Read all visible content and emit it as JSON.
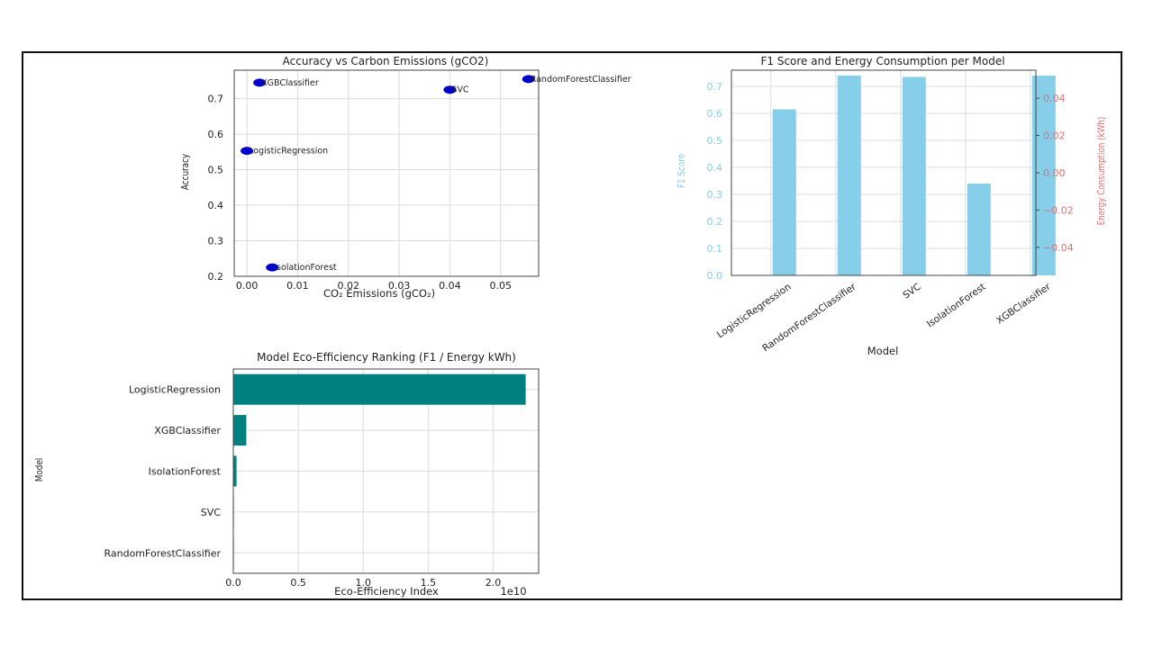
{
  "chart_data": [
    {
      "type": "scatter",
      "title": "Accuracy vs Carbon Emissions (gCO2)",
      "xlabel": "CO₂ Emissions (gCO₂)",
      "ylabel": "Accuracy",
      "xlim": [
        -0.0025,
        0.0575
      ],
      "ylim": [
        0.2,
        0.78
      ],
      "xticks": [
        "0.00",
        "0.01",
        "0.02",
        "0.03",
        "0.04",
        "0.05"
      ],
      "yticks": [
        "0.2",
        "0.3",
        "0.4",
        "0.5",
        "0.6",
        "0.7"
      ],
      "grid": true,
      "point_color": "#0000cc",
      "points": [
        {
          "label": "XGBClassifier",
          "x": 0.0025,
          "y": 0.745
        },
        {
          "label": "SVC",
          "x": 0.04,
          "y": 0.725
        },
        {
          "label": "RandomForestClassifier",
          "x": 0.0555,
          "y": 0.755
        },
        {
          "label": "LogisticRegression",
          "x": 0.0,
          "y": 0.553
        },
        {
          "label": "IsolationForest",
          "x": 0.005,
          "y": 0.225
        }
      ]
    },
    {
      "type": "bar",
      "title": "F1 Score and Energy Consumption per Model",
      "xlabel": "Model",
      "ylabel": "F1 Score",
      "y2label": "Energy Consumption (kWh)",
      "ylim": [
        0.0,
        0.76
      ],
      "y2lim": [
        -0.055,
        0.055
      ],
      "yticks": [
        "0.0",
        "0.1",
        "0.2",
        "0.3",
        "0.4",
        "0.5",
        "0.6",
        "0.7"
      ],
      "y2ticks": [
        "−0.04",
        "−0.02",
        "0.00",
        "0.02",
        "0.04"
      ],
      "grid": true,
      "bar_color": "#87ceeb",
      "left_axis_color": "#87ceeb",
      "right_axis_color": "#e07070",
      "categories": [
        "LogisticRegression",
        "RandomForestClassifier",
        "SVC",
        "IsolationForest",
        "XGBClassifier"
      ],
      "series": [
        {
          "values": [
            0.615,
            0.74,
            0.735,
            0.34,
            0.74
          ]
        }
      ]
    },
    {
      "type": "bar",
      "orientation": "horizontal",
      "title": "Model Eco-Efficiency Ranking (F1 / Energy kWh)",
      "xlabel": "Eco-Efficiency Index",
      "ylabel": "Model",
      "x_scale_label": "1e10",
      "xlim": [
        0,
        2.35
      ],
      "xticks": [
        "0.0",
        "0.5",
        "1.0",
        "1.5",
        "2.0"
      ],
      "grid": true,
      "bar_color": "#008080",
      "categories": [
        "LogisticRegression",
        "XGBClassifier",
        "IsolationForest",
        "SVC",
        "RandomForestClassifier"
      ],
      "values": [
        2.25,
        0.1,
        0.025,
        0.003,
        0.001
      ]
    }
  ]
}
